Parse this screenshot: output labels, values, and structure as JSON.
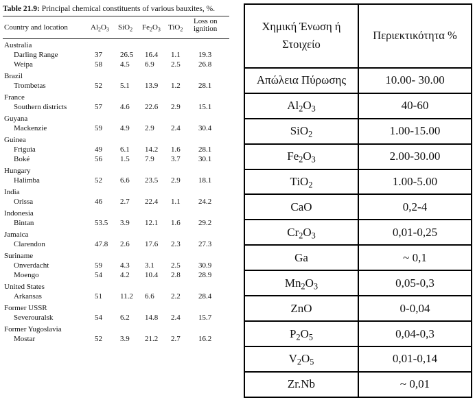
{
  "left_table": {
    "caption_bold": "Table 21.9:",
    "caption_rest": " Principal chemical constituents of various bauxites, %.",
    "headers": {
      "country": "Country and location",
      "al2o3": [
        "Al",
        "2",
        "O",
        "3"
      ],
      "sio2": [
        "SiO",
        "2"
      ],
      "fe2o3": [
        "Fe",
        "2",
        "O",
        "3"
      ],
      "tio2": [
        "TiO",
        "2"
      ],
      "loss": [
        "Loss on",
        "ignition"
      ]
    },
    "groups": [
      {
        "country": "Australia",
        "rows": [
          {
            "loc": "Darling Range",
            "v": [
              "37",
              "26.5",
              "16.4",
              "1.1",
              "19.3"
            ]
          },
          {
            "loc": "Weipa",
            "v": [
              "58",
              "4.5",
              "6.9",
              "2.5",
              "26.8"
            ]
          }
        ]
      },
      {
        "country": "Brazil",
        "rows": [
          {
            "loc": "Trombetas",
            "v": [
              "52",
              "5.1",
              "13.9",
              "1.2",
              "28.1"
            ]
          }
        ]
      },
      {
        "country": "France",
        "rows": [
          {
            "loc": "Southern districts",
            "v": [
              "57",
              "4.6",
              "22.6",
              "2.9",
              "15.1"
            ]
          }
        ]
      },
      {
        "country": "Guyana",
        "rows": [
          {
            "loc": "Mackenzie",
            "v": [
              "59",
              "4.9",
              "2.9",
              "2.4",
              "30.4"
            ]
          }
        ]
      },
      {
        "country": "Guinea",
        "rows": [
          {
            "loc": "Friguia",
            "v": [
              "49",
              "6.1",
              "14.2",
              "1.6",
              "28.1"
            ]
          },
          {
            "loc": "Boké",
            "v": [
              "56",
              "1.5",
              "7.9",
              "3.7",
              "30.1"
            ]
          }
        ]
      },
      {
        "country": "Hungary",
        "rows": [
          {
            "loc": "Halimba",
            "v": [
              "52",
              "6.6",
              "23.5",
              "2.9",
              "18.1"
            ]
          }
        ]
      },
      {
        "country": "India",
        "rows": [
          {
            "loc": "Orissa",
            "v": [
              "46",
              "2.7",
              "22.4",
              "1.1",
              "24.2"
            ]
          }
        ]
      },
      {
        "country": "Indonesia",
        "rows": [
          {
            "loc": "Bintan",
            "v": [
              "53.5",
              "3.9",
              "12.1",
              "1.6",
              "29.2"
            ]
          }
        ]
      },
      {
        "country": "Jamaica",
        "rows": [
          {
            "loc": "Clarendon",
            "v": [
              "47.8",
              "2.6",
              "17.6",
              "2.3",
              "27.3"
            ]
          }
        ]
      },
      {
        "country": "Suriname",
        "rows": [
          {
            "loc": "Onverdacht",
            "v": [
              "59",
              "4.3",
              "3.1",
              "2.5",
              "30.9"
            ]
          },
          {
            "loc": "Moengo",
            "v": [
              "54",
              "4.2",
              "10.4",
              "2.8",
              "28.9"
            ]
          }
        ]
      },
      {
        "country": "United States",
        "rows": [
          {
            "loc": "Arkansas",
            "v": [
              "51",
              "11.2",
              "6.6",
              "2.2",
              "28.4"
            ]
          }
        ]
      },
      {
        "country": "Former USSR",
        "rows": [
          {
            "loc": "Severouralsk",
            "v": [
              "54",
              "6.2",
              "14.8",
              "2.4",
              "15.7"
            ]
          }
        ]
      },
      {
        "country": "Former Yugoslavia",
        "rows": [
          {
            "loc": "Mostar",
            "v": [
              "52",
              "3.9",
              "21.2",
              "2.7",
              "16.2"
            ]
          }
        ]
      }
    ]
  },
  "right_table": {
    "header": {
      "compound_line1": "Χημική Ένωση ή",
      "compound_line2": "Στοιχείο",
      "content": "Περιεκτικότητα %"
    },
    "rows": [
      {
        "name": [
          [
            "Απώλεια Πύρωσης",
            ""
          ]
        ],
        "value": "10.00- 30.00"
      },
      {
        "name": [
          [
            "Al",
            "2"
          ],
          [
            "O",
            "3"
          ]
        ],
        "value": "40-60"
      },
      {
        "name": [
          [
            "SiO",
            "2"
          ]
        ],
        "value": "1.00-15.00"
      },
      {
        "name": [
          [
            "Fe",
            "2"
          ],
          [
            "O",
            "3"
          ]
        ],
        "value": "2.00-30.00"
      },
      {
        "name": [
          [
            "TiO",
            "2"
          ]
        ],
        "value": "1.00-5.00"
      },
      {
        "name": [
          [
            "CaO",
            ""
          ]
        ],
        "value": "0,2-4"
      },
      {
        "name": [
          [
            "Cr",
            "2"
          ],
          [
            "O",
            "3"
          ]
        ],
        "value": "0,01-0,25"
      },
      {
        "name": [
          [
            "Ga",
            ""
          ]
        ],
        "value": "~ 0,1"
      },
      {
        "name": [
          [
            "Mn",
            "2"
          ],
          [
            "O",
            "3"
          ]
        ],
        "value": "0,05-0,3"
      },
      {
        "name": [
          [
            "ZnO",
            ""
          ]
        ],
        "value": "0-0,04"
      },
      {
        "name": [
          [
            "P",
            "2"
          ],
          [
            "O",
            "5"
          ]
        ],
        "value": "0,04-0,3"
      },
      {
        "name": [
          [
            "V",
            "2"
          ],
          [
            "O",
            "5"
          ]
        ],
        "value": "0,01-0,14"
      },
      {
        "name": [
          [
            "Zr.Nb",
            ""
          ]
        ],
        "value": "~ 0,01"
      }
    ]
  }
}
